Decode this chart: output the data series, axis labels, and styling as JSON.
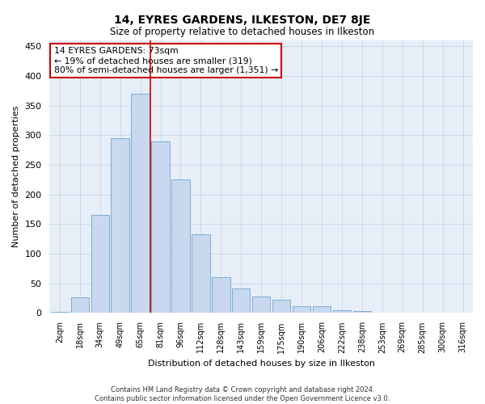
{
  "title": "14, EYRES GARDENS, ILKESTON, DE7 8JE",
  "subtitle": "Size of property relative to detached houses in Ilkeston",
  "xlabel": "Distribution of detached houses by size in Ilkeston",
  "ylabel": "Number of detached properties",
  "footer1": "Contains HM Land Registry data © Crown copyright and database right 2024.",
  "footer2": "Contains public sector information licensed under the Open Government Licence v3.0.",
  "annotation_title": "14 EYRES GARDENS: 73sqm",
  "annotation_line1": "← 19% of detached houses are smaller (319)",
  "annotation_line2": "80% of semi-detached houses are larger (1,351) →",
  "bar_color": "#c8d9ef",
  "bar_edge_color": "#7badd4",
  "grid_color": "#c8d4e8",
  "redline_color": "#cc0000",
  "annotation_box_edgecolor": "#cc0000",
  "background_color": "#ffffff",
  "plot_bg_color": "#e8eef8",
  "categories": [
    "2sqm",
    "18sqm",
    "34sqm",
    "49sqm",
    "65sqm",
    "81sqm",
    "96sqm",
    "112sqm",
    "128sqm",
    "143sqm",
    "159sqm",
    "175sqm",
    "190sqm",
    "206sqm",
    "222sqm",
    "238sqm",
    "253sqm",
    "269sqm",
    "285sqm",
    "300sqm",
    "316sqm"
  ],
  "values": [
    2,
    27,
    165,
    295,
    370,
    290,
    225,
    133,
    60,
    42,
    28,
    22,
    11,
    11,
    5,
    3,
    1,
    1,
    0,
    0,
    0
  ],
  "ylim": [
    0,
    460
  ],
  "yticks": [
    0,
    50,
    100,
    150,
    200,
    250,
    300,
    350,
    400,
    450
  ],
  "red_line_bin_index": 5,
  "figsize": [
    6.0,
    5.0
  ],
  "dpi": 100
}
